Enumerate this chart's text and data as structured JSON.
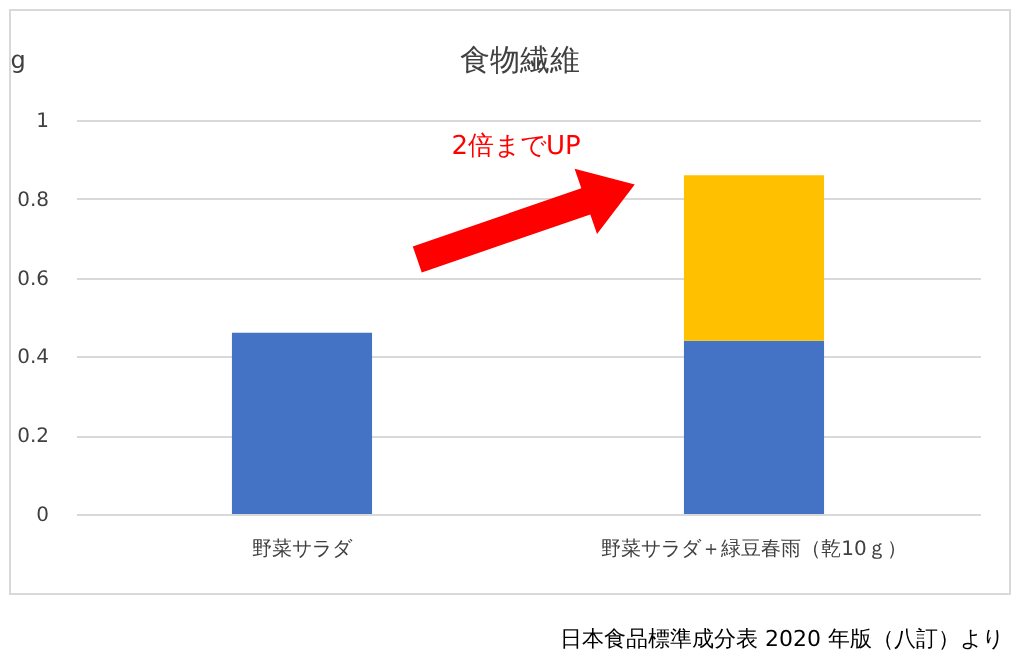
{
  "chart_data": {
    "type": "bar",
    "title": "食物繊維",
    "ylabel": "g",
    "categories": [
      "野菜サラダ",
      "野菜サラダ＋緑豆春雨（乾10ｇ）"
    ],
    "stacked": true,
    "series": [
      {
        "color": "#4472c4",
        "values": [
          0.46,
          0.44
        ]
      },
      {
        "color": "#ffc000",
        "values": [
          null,
          0.42
        ]
      }
    ],
    "ylim": [
      0,
      1
    ],
    "yticks": [
      0,
      0.2,
      0.4,
      0.6,
      0.8,
      1
    ],
    "grid": "y",
    "annotations": [
      "2倍までUP",
      "日本食品標準成分表 2020 年版（八訂）より"
    ]
  }
}
